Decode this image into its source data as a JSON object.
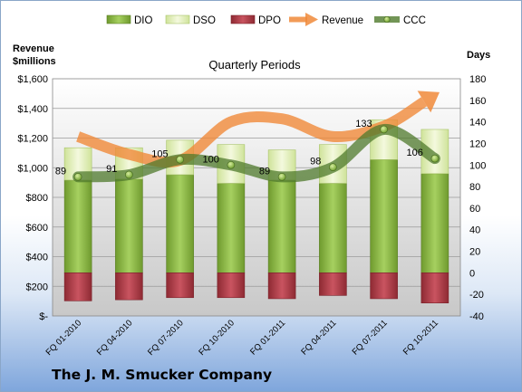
{
  "chart_data": {
    "type": "bar",
    "title": "Quarterly Periods",
    "company": "The J. M. Smucker Company",
    "categories": [
      "FQ 01-2010",
      "FQ 04-2010",
      "FQ 07-2010",
      "FQ 10-2010",
      "FQ 01-2011",
      "FQ 04-2011",
      "FQ 07-2011",
      "FQ 10-2011"
    ],
    "left_axis": {
      "label_line1": "Revenue",
      "label_line2": "$millions",
      "ylim": [
        0,
        1600
      ],
      "ticks": [
        0,
        200,
        400,
        600,
        800,
        1000,
        1200,
        1400,
        1600
      ],
      "tick_labels": [
        "$-",
        "$200",
        "$400",
        "$600",
        "$800",
        "$1,000",
        "$1,200",
        "$1,400",
        "$1,600"
      ]
    },
    "right_axis": {
      "label": "Days",
      "ylim": [
        -40,
        180
      ],
      "ticks": [
        -40,
        -20,
        0,
        20,
        40,
        60,
        80,
        100,
        120,
        140,
        160,
        180
      ],
      "tick_labels": [
        "-40",
        "-20",
        "0",
        "20",
        "40",
        "60",
        "80",
        "100",
        "120",
        "140",
        "160",
        "180"
      ]
    },
    "legend_position": "top",
    "series": [
      {
        "name": "DIO",
        "axis": "right",
        "kind": "bar",
        "color": "#8cb84a",
        "values": [
          86,
          87,
          91,
          83,
          86,
          83,
          105,
          92
        ]
      },
      {
        "name": "DSO",
        "axis": "right",
        "kind": "bar-stacked",
        "color": "#e6f0c4",
        "values": [
          30,
          29,
          32,
          36,
          28,
          36,
          37,
          41
        ]
      },
      {
        "name": "DPO",
        "axis": "right",
        "kind": "bar-negative",
        "color": "#b8404a",
        "values": [
          -26,
          -25,
          -23,
          -23,
          -24,
          -21,
          -24,
          -28
        ]
      },
      {
        "name": "Revenue",
        "axis": "left",
        "kind": "line-arrow",
        "color": "#f08a3a",
        "values": [
          1210,
          1090,
          1050,
          1310,
          1330,
          1210,
          1280,
          1490
        ]
      },
      {
        "name": "CCC",
        "axis": "right",
        "kind": "line-markers",
        "color": "#4f7a2c",
        "values": [
          89,
          91,
          105,
          100,
          89,
          98,
          133,
          106
        ]
      }
    ]
  }
}
